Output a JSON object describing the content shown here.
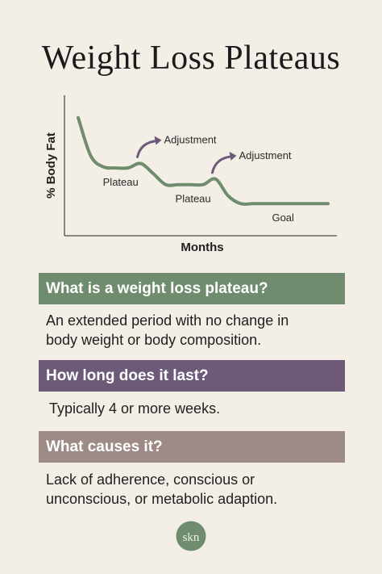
{
  "page": {
    "title": "Weight Loss Plateaus",
    "brand_colors": {
      "green": "#6f8c6f",
      "purple": "#6c5a78",
      "mauve": "#9e8a86",
      "background": "#f3efe7"
    }
  },
  "chart_data": {
    "type": "line",
    "xlabel": "Months",
    "ylabel": "% Body Fat",
    "line_color": "#6f8c6f",
    "arrow_color": "#6c5a78",
    "x": [
      0,
      0.5,
      1,
      1.5,
      2,
      2.5,
      3,
      3.5,
      4,
      4.5,
      5,
      5.5,
      6,
      6.5,
      7,
      7.5,
      8,
      8.5,
      9,
      9.5,
      10
    ],
    "values": [
      100,
      66,
      56,
      55,
      55,
      59,
      50,
      40,
      40,
      40,
      40,
      45,
      30,
      23,
      23,
      23,
      23,
      23,
      23,
      23,
      23
    ],
    "xlim": [
      0,
      10
    ],
    "ylim": [
      0,
      110
    ],
    "annotations": [
      {
        "text": "Plateau",
        "x": 1.7,
        "y": 55
      },
      {
        "text": "Adjustment",
        "x": 2.5,
        "y": 59,
        "arrow": true
      },
      {
        "text": "Plateau",
        "x": 4.6,
        "y": 40
      },
      {
        "text": "Adjustment",
        "x": 5.5,
        "y": 45,
        "arrow": true
      },
      {
        "text": "Goal",
        "x": 8.2,
        "y": 23
      }
    ]
  },
  "sections": [
    {
      "heading": "What is a weight loss plateau?",
      "body": [
        "An extended period with no change in",
        "body weight or body composition."
      ],
      "color": "#6f8c6f"
    },
    {
      "heading": "How long does it last?",
      "body": [
        "Typically 4 or more weeks."
      ],
      "color": "#6c5a78"
    },
    {
      "heading": "What causes it?",
      "body": [
        "Lack of adherence, conscious or",
        "unconscious, or metabolic adaption."
      ],
      "color": "#9e8a86"
    }
  ],
  "logo": {
    "text": "skn",
    "icon": "monogram-logo-icon",
    "color": "#6f8c6f"
  }
}
